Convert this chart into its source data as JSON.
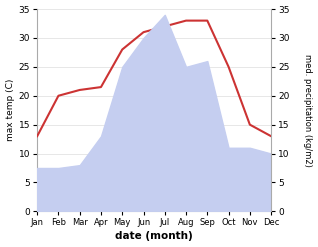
{
  "months": [
    "Jan",
    "Feb",
    "Mar",
    "Apr",
    "May",
    "Jun",
    "Jul",
    "Aug",
    "Sep",
    "Oct",
    "Nov",
    "Dec"
  ],
  "temperature": [
    13,
    20,
    21,
    21.5,
    28,
    31,
    32,
    33,
    33,
    25,
    15,
    13
  ],
  "precipitation": [
    7.5,
    7.5,
    8,
    13,
    25,
    30,
    34,
    25,
    26,
    11,
    11,
    10
  ],
  "temp_color": "#cc3333",
  "precip_fill_color": "#c5cef0",
  "background_color": "#ffffff",
  "xlabel": "date (month)",
  "ylabel_left": "max temp (C)",
  "ylabel_right": "med. precipitation (kg/m2)",
  "ylim": [
    0,
    35
  ],
  "yticks": [
    0,
    5,
    10,
    15,
    20,
    25,
    30,
    35
  ],
  "figsize": [
    3.18,
    2.47
  ],
  "dpi": 100
}
